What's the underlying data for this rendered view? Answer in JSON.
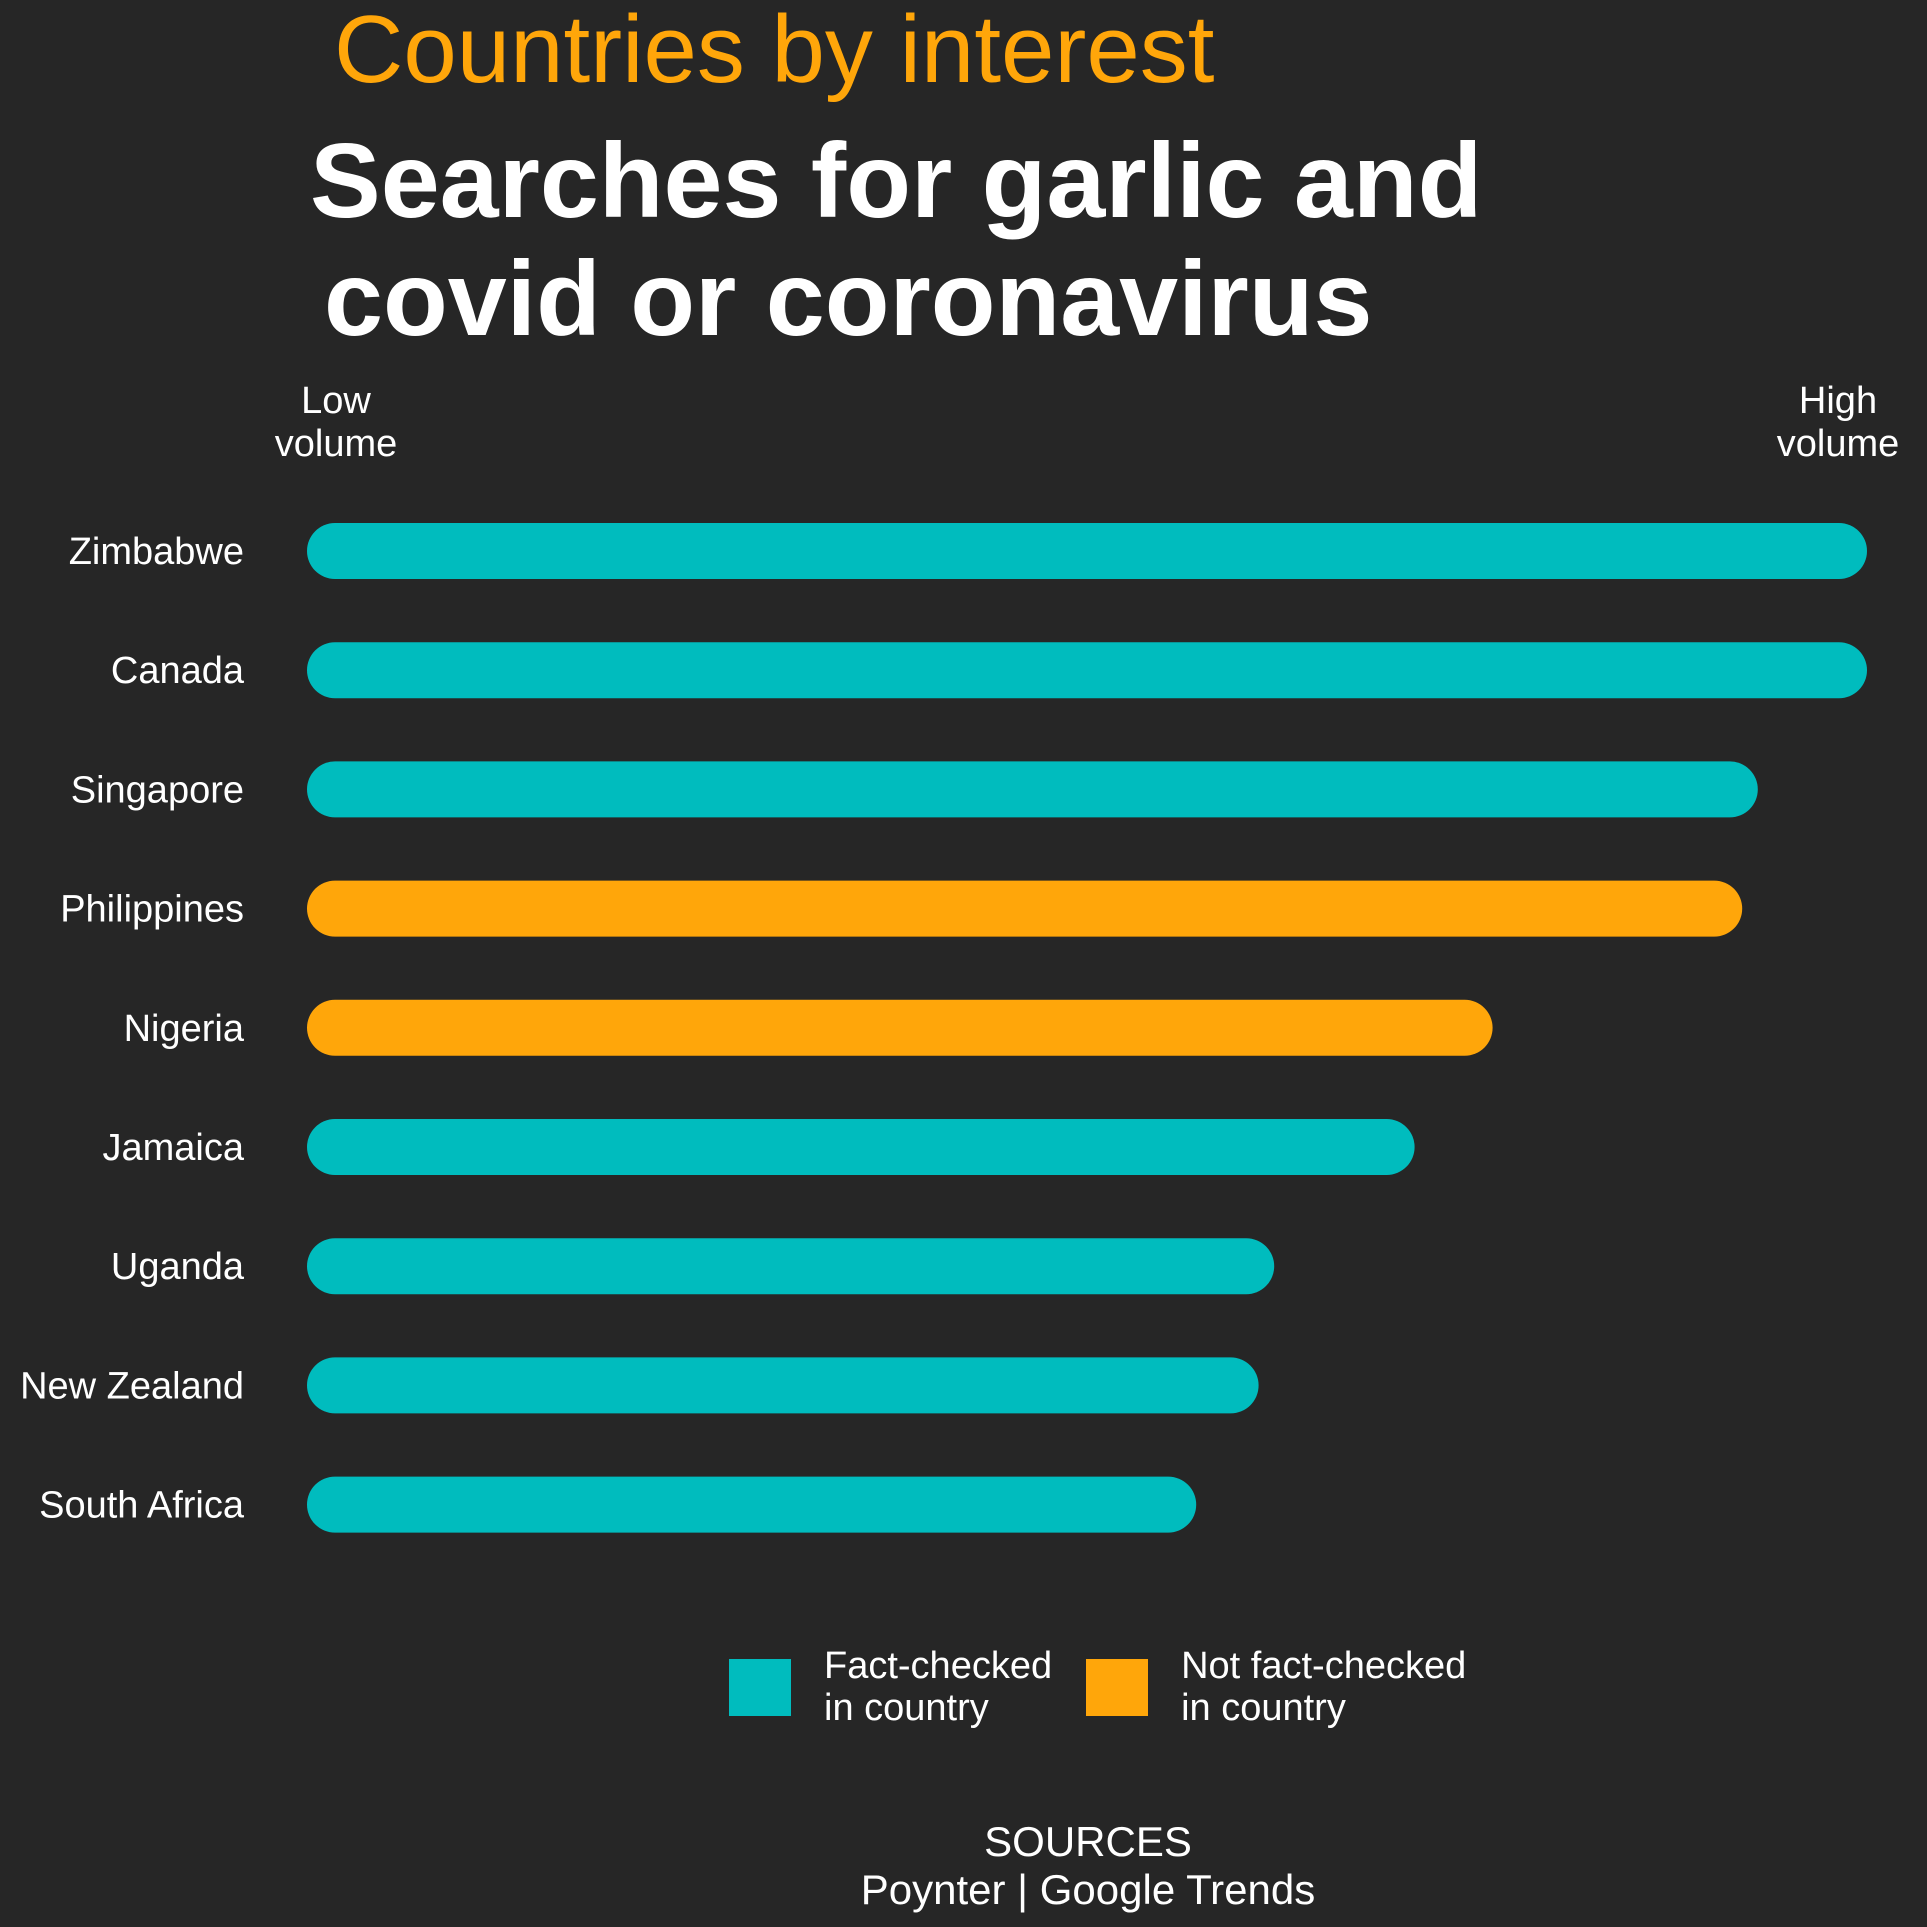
{
  "header": {
    "kicker": "Countries by interest",
    "title_line1": "Searches for garlic and",
    "title_line2": "covid or coronavirus"
  },
  "scale": {
    "low": "Low\nvolume",
    "high": "High\nvolume"
  },
  "legend": {
    "fact_checked": "Fact-checked\nin country",
    "not_fact_checked": "Not fact-checked\nin country"
  },
  "sources": {
    "heading": "SOURCES",
    "text": "Poynter | Google Trends"
  },
  "colors": {
    "background": "#262626",
    "fact_checked": "#00bcbe",
    "not_fact_checked": "#ffa60a",
    "text": "#ffffff"
  },
  "chart_data": {
    "type": "bar",
    "orientation": "horizontal",
    "title": "Searches for garlic and covid or coronavirus",
    "subtitle": "Countries by interest",
    "categories": [
      "Zimbabwe",
      "Canada",
      "Singapore",
      "Philippines",
      "Nigeria",
      "Jamaica",
      "Uganda",
      "New Zealand",
      "South Africa"
    ],
    "values": [
      100,
      100,
      93,
      92,
      76,
      71,
      62,
      61,
      57
    ],
    "group": [
      "fact_checked",
      "fact_checked",
      "fact_checked",
      "not_fact_checked",
      "not_fact_checked",
      "fact_checked",
      "fact_checked",
      "fact_checked",
      "fact_checked"
    ],
    "xlim": [
      0,
      100
    ],
    "grid": false,
    "legend_position": "bottom"
  }
}
